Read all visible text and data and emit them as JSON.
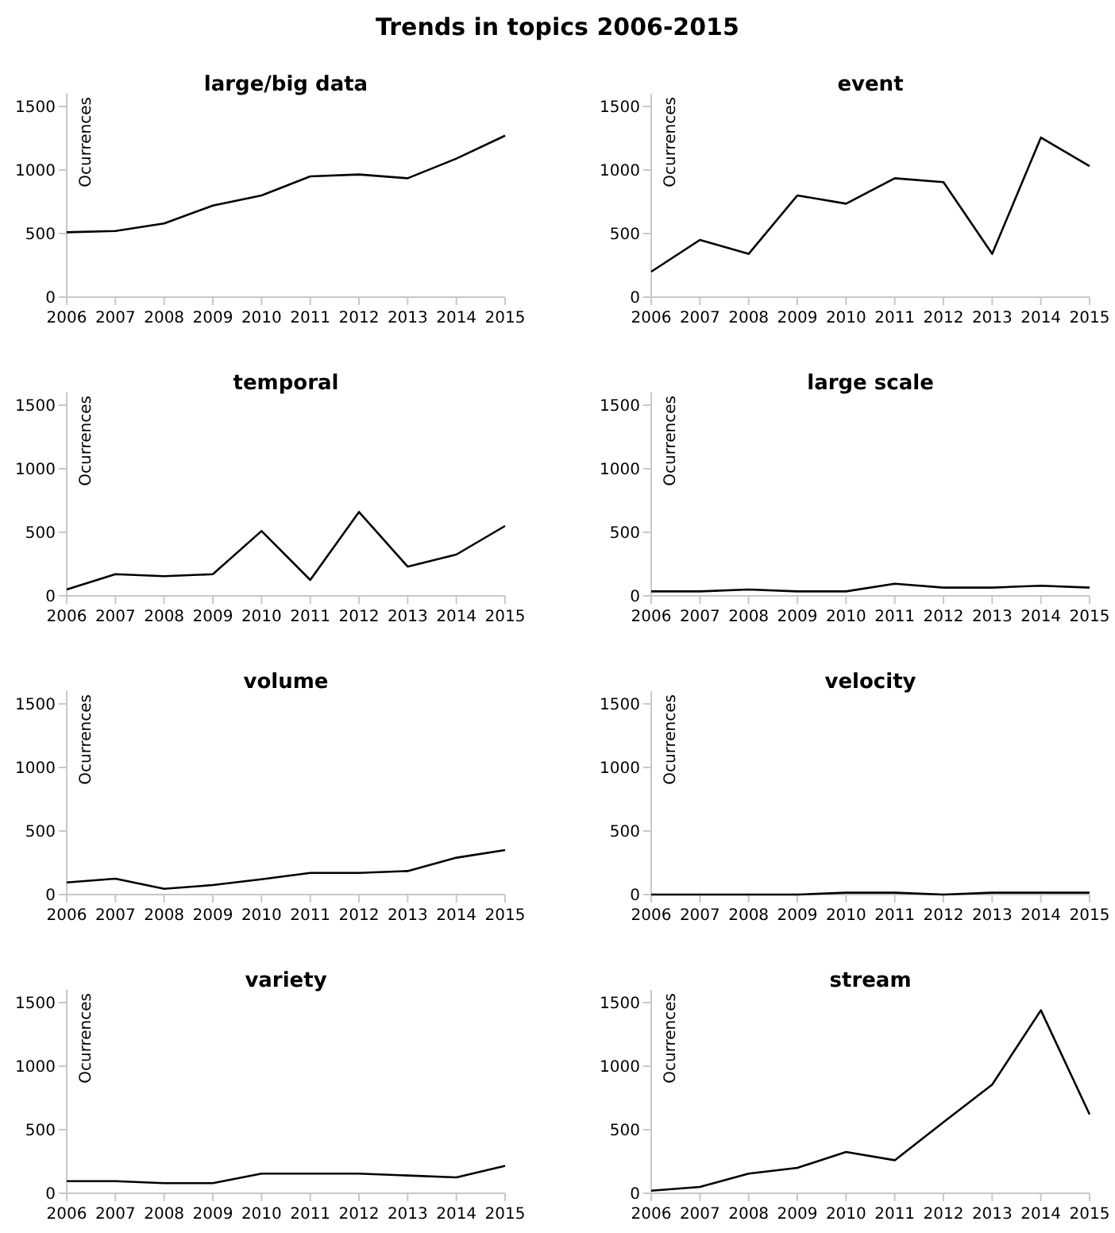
{
  "chart_data": [
    {
      "type": "line",
      "title": "large/big data",
      "ylabel": "Ocurrences",
      "annotations": [
        "Trends in topics 2006-2015"
      ],
      "x": [
        2006,
        2007,
        2008,
        2009,
        2010,
        2011,
        2012,
        2013,
        2014,
        2015
      ],
      "series": [
        {
          "color": "#000000",
          "values": [
            510,
            520,
            580,
            720,
            800,
            950,
            965,
            935,
            1090,
            1270
          ]
        }
      ],
      "xlim": [
        2006,
        2015
      ],
      "xticks": [
        2006,
        2007,
        2008,
        2009,
        2010,
        2011,
        2012,
        2013,
        2014,
        2015
      ],
      "ylim": [
        0,
        1600
      ],
      "yticks": [
        0,
        500,
        1000,
        1500
      ]
    },
    {
      "type": "line",
      "title": "event",
      "ylabel": "Ocurrences",
      "x": [
        2006,
        2007,
        2008,
        2009,
        2010,
        2011,
        2012,
        2013,
        2014,
        2015
      ],
      "series": [
        {
          "color": "#000000",
          "values": [
            200,
            450,
            340,
            800,
            735,
            935,
            905,
            340,
            1255,
            1030
          ]
        }
      ],
      "xlim": [
        2006,
        2015
      ],
      "xticks": [
        2006,
        2007,
        2008,
        2009,
        2010,
        2011,
        2012,
        2013,
        2014,
        2015
      ],
      "ylim": [
        0,
        1600
      ],
      "yticks": [
        0,
        500,
        1000,
        1500
      ]
    },
    {
      "type": "line",
      "title": "temporal",
      "ylabel": "Ocurrences",
      "x": [
        2006,
        2007,
        2008,
        2009,
        2010,
        2011,
        2012,
        2013,
        2014,
        2015
      ],
      "series": [
        {
          "color": "#000000",
          "values": [
            50,
            170,
            155,
            170,
            510,
            125,
            660,
            230,
            325,
            550
          ]
        }
      ],
      "xlim": [
        2006,
        2015
      ],
      "xticks": [
        2006,
        2007,
        2008,
        2009,
        2010,
        2011,
        2012,
        2013,
        2014,
        2015
      ],
      "ylim": [
        0,
        1600
      ],
      "yticks": [
        0,
        500,
        1000,
        1500
      ]
    },
    {
      "type": "line",
      "title": "large scale",
      "ylabel": "Ocurrences",
      "x": [
        2006,
        2007,
        2008,
        2009,
        2010,
        2011,
        2012,
        2013,
        2014,
        2015
      ],
      "series": [
        {
          "color": "#000000",
          "values": [
            35,
            35,
            50,
            35,
            35,
            95,
            65,
            65,
            80,
            65
          ]
        }
      ],
      "xlim": [
        2006,
        2015
      ],
      "xticks": [
        2006,
        2007,
        2008,
        2009,
        2010,
        2011,
        2012,
        2013,
        2014,
        2015
      ],
      "ylim": [
        0,
        1600
      ],
      "yticks": [
        0,
        500,
        1000,
        1500
      ]
    },
    {
      "type": "line",
      "title": "volume",
      "ylabel": "Ocurrences",
      "x": [
        2006,
        2007,
        2008,
        2009,
        2010,
        2011,
        2012,
        2013,
        2014,
        2015
      ],
      "series": [
        {
          "color": "#000000",
          "values": [
            95,
            125,
            45,
            75,
            120,
            170,
            170,
            185,
            290,
            350
          ]
        }
      ],
      "xlim": [
        2006,
        2015
      ],
      "xticks": [
        2006,
        2007,
        2008,
        2009,
        2010,
        2011,
        2012,
        2013,
        2014,
        2015
      ],
      "ylim": [
        0,
        1600
      ],
      "yticks": [
        0,
        500,
        1000,
        1500
      ]
    },
    {
      "type": "line",
      "title": "velocity",
      "ylabel": "Ocurrences",
      "x": [
        2006,
        2007,
        2008,
        2009,
        2010,
        2011,
        2012,
        2013,
        2014,
        2015
      ],
      "series": [
        {
          "color": "#000000",
          "values": [
            0,
            0,
            0,
            0,
            15,
            15,
            0,
            15,
            15,
            15
          ]
        }
      ],
      "xlim": [
        2006,
        2015
      ],
      "xticks": [
        2006,
        2007,
        2008,
        2009,
        2010,
        2011,
        2012,
        2013,
        2014,
        2015
      ],
      "ylim": [
        0,
        1600
      ],
      "yticks": [
        0,
        500,
        1000,
        1500
      ]
    },
    {
      "type": "line",
      "title": "variety",
      "ylabel": "Ocurrences",
      "x": [
        2006,
        2007,
        2008,
        2009,
        2010,
        2011,
        2012,
        2013,
        2014,
        2015
      ],
      "series": [
        {
          "color": "#000000",
          "values": [
            95,
            95,
            80,
            80,
            155,
            155,
            155,
            140,
            125,
            215
          ]
        }
      ],
      "xlim": [
        2006,
        2015
      ],
      "xticks": [
        2006,
        2007,
        2008,
        2009,
        2010,
        2011,
        2012,
        2013,
        2014,
        2015
      ],
      "ylim": [
        0,
        1600
      ],
      "yticks": [
        0,
        500,
        1000,
        1500
      ]
    },
    {
      "type": "line",
      "title": "stream",
      "ylabel": "Ocurrences",
      "x": [
        2006,
        2007,
        2008,
        2009,
        2010,
        2011,
        2012,
        2013,
        2014,
        2015
      ],
      "series": [
        {
          "color": "#000000",
          "values": [
            20,
            50,
            155,
            200,
            325,
            260,
            560,
            855,
            1440,
            620
          ]
        }
      ],
      "xlim": [
        2006,
        2015
      ],
      "xticks": [
        2006,
        2007,
        2008,
        2009,
        2010,
        2011,
        2012,
        2013,
        2014,
        2015
      ],
      "ylim": [
        0,
        1600
      ],
      "yticks": [
        0,
        500,
        1000,
        1500
      ]
    }
  ]
}
